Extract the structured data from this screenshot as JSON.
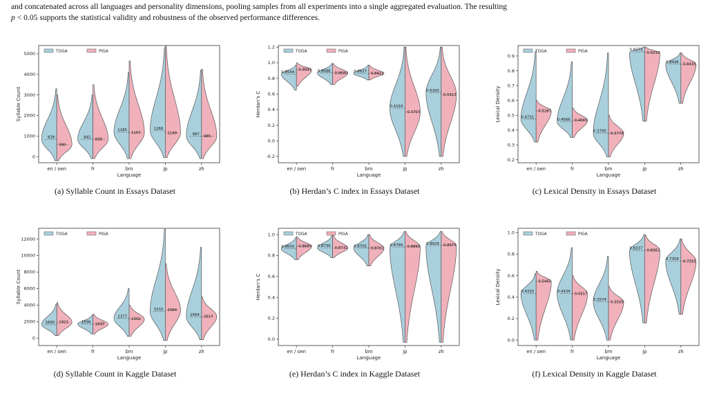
{
  "intro": {
    "line1": "and concatenated across all languages and personality dimensions, pooling samples from all experiments into a single aggregated evaluation. The resulting",
    "line2_var": "p",
    "line2_rest": "< 0.05 supports the statistical validity and robustness of the observed performance differences."
  },
  "colors": {
    "TOGA": "#a9cfdc",
    "PIGA": "#f1b1bb",
    "outline": "#555555"
  },
  "chart_data": [
    {
      "type": "violin",
      "caption": "(a) Syllable Count in Essays Dataset",
      "xlabel": "Language",
      "ylabel": "Syllable Count",
      "categories": [
        "en / oen",
        "fr",
        "bm",
        "jp",
        "zh"
      ],
      "ylim": [
        -300,
        5400
      ],
      "yticks": [
        0,
        1000,
        2000,
        3000,
        4000,
        5000
      ],
      "legend": [
        "TOGA",
        "PIGA"
      ],
      "series": [
        {
          "name": "TOGA",
          "means": [
            839,
            842,
            1185,
            1266,
            997
          ],
          "labels": [
            "839",
            "842",
            "1185",
            "1266",
            "997"
          ],
          "mins": [
            -200,
            -100,
            -100,
            -50,
            -100
          ],
          "maxs": [
            3300,
            3000,
            4100,
            5300,
            4200
          ]
        },
        {
          "name": "PIGA",
          "means": [
            580,
            838,
            1157,
            1149,
            985
          ],
          "labels": [
            "580",
            "838",
            "1157",
            "1149",
            "985"
          ],
          "mins": [
            -200,
            -100,
            -100,
            -50,
            -100
          ],
          "maxs": [
            3000,
            3500,
            4650,
            5400,
            4250
          ]
        }
      ]
    },
    {
      "type": "violin",
      "caption": "(b) Herdan’s C index in Essays Dataset",
      "xlabel": "Language",
      "ylabel": "Herdan’s C",
      "categories": [
        "en / oen",
        "fr",
        "bm",
        "jp",
        "zh"
      ],
      "ylim": [
        -0.28,
        1.22
      ],
      "yticks": [
        -0.2,
        0.0,
        0.2,
        0.4,
        0.6,
        0.8,
        1.0,
        1.2
      ],
      "legend": [
        "TOGA",
        "PIGA"
      ],
      "series": [
        {
          "name": "TOGA",
          "means": [
            0.8544,
            0.8688,
            0.8627,
            0.4164,
            0.616
          ],
          "labels": [
            "0.8544",
            "0.8688",
            "0.8627",
            "0.4164",
            "0.6160"
          ],
          "mins": [
            0.65,
            0.72,
            0.78,
            -0.2,
            -0.2
          ],
          "maxs": [
            0.97,
            0.99,
            0.97,
            1.2,
            1.2
          ]
        },
        {
          "name": "PIGA",
          "means": [
            0.9091,
            0.868,
            0.8622,
            0.3703,
            0.5913
          ],
          "labels": [
            "0.9091",
            "0.8680",
            "0.8622",
            "0.3703",
            "0.5913"
          ],
          "mins": [
            0.7,
            0.72,
            0.78,
            -0.2,
            -0.2
          ],
          "maxs": [
            1.0,
            0.99,
            0.97,
            1.2,
            1.2
          ]
        }
      ]
    },
    {
      "type": "violin",
      "caption": "(c) Lexical Density in Essays Dataset",
      "xlabel": "Language",
      "ylabel": "Lexical Density",
      "categories": [
        "en / oen",
        "fr",
        "bm",
        "jp",
        "zh"
      ],
      "ylim": [
        0.18,
        0.97
      ],
      "yticks": [
        0.2,
        0.3,
        0.4,
        0.5,
        0.6,
        0.7,
        0.8,
        0.9
      ],
      "legend": [
        "TOGA",
        "PIGA"
      ],
      "series": [
        {
          "name": "TOGA",
          "means": [
            0.4731,
            0.4566,
            0.3795,
            0.9273,
            0.8446
          ],
          "labels": [
            "0.4731",
            "0.4566",
            "0.3795",
            "0.9273",
            "0.8446"
          ],
          "mins": [
            0.32,
            0.35,
            0.22,
            0.46,
            0.58
          ],
          "maxs": [
            0.93,
            0.86,
            0.92,
            0.96,
            0.92
          ]
        },
        {
          "name": "PIGA",
          "means": [
            0.5287,
            0.4665,
            0.3778,
            0.9218,
            0.8435
          ],
          "labels": [
            "0.5287",
            "0.4665",
            "0.3778",
            "0.9218",
            "0.8435"
          ],
          "mins": [
            0.32,
            0.35,
            0.22,
            0.46,
            0.58
          ],
          "maxs": [
            0.6,
            0.55,
            0.5,
            0.96,
            0.92
          ]
        }
      ]
    },
    {
      "type": "violin",
      "caption": "(d) Syllable Count in Kaggle Dataset",
      "xlabel": "Language",
      "ylabel": "Syllable Count",
      "categories": [
        "en / oen",
        "fr",
        "bm",
        "jp",
        "zh"
      ],
      "ylim": [
        -900,
        13300
      ],
      "yticks": [
        0,
        2000,
        4000,
        6000,
        8000,
        10000,
        12000
      ],
      "legend": [
        "TOGA",
        "PIGA"
      ],
      "series": [
        {
          "name": "TOGA",
          "means": [
            1660,
            1696,
            2377,
            3232,
            2564
          ],
          "labels": [
            "1660",
            "1696",
            "2377",
            "3232",
            "2564"
          ],
          "mins": [
            300,
            500,
            200,
            -300,
            -200
          ],
          "maxs": [
            4100,
            2800,
            6000,
            13200,
            11000
          ]
        },
        {
          "name": "PIGA",
          "means": [
            1921,
            1697,
            2302,
            3384,
            2617
          ],
          "labels": [
            "1921",
            "1697",
            "2302",
            "3384",
            "2617"
          ],
          "mins": [
            300,
            500,
            200,
            -300,
            -200
          ],
          "maxs": [
            4300,
            2900,
            4000,
            9000,
            5000
          ]
        }
      ]
    },
    {
      "type": "violin",
      "caption": "(e) Herdan’s C index in Kaggle Dataset",
      "xlabel": "Language",
      "ylabel": "Herdan’s C",
      "categories": [
        "en / oen",
        "fr",
        "bm",
        "jp",
        "zh"
      ],
      "ylim": [
        -0.06,
        1.06
      ],
      "yticks": [
        0.0,
        0.2,
        0.4,
        0.6,
        0.8,
        1.0
      ],
      "legend": [
        "TOGA",
        "PIGA"
      ],
      "series": [
        {
          "name": "TOGA",
          "means": [
            0.865,
            0.873,
            0.8705,
            0.8789,
            0.8929
          ],
          "labels": [
            "0.8650",
            "0.8730",
            "0.8705",
            "0.8789",
            "0.8929"
          ],
          "mins": [
            0.76,
            0.78,
            0.7,
            -0.03,
            -0.03
          ],
          "maxs": [
            0.97,
            0.99,
            1.0,
            1.03,
            1.03
          ]
        },
        {
          "name": "PIGA",
          "means": [
            0.8884,
            0.8731,
            0.8701,
            0.8868,
            0.8975
          ],
          "labels": [
            "0.8884",
            "0.8731",
            "0.8701",
            "0.8868",
            "0.8975"
          ],
          "mins": [
            0.76,
            0.78,
            0.7,
            -0.03,
            -0.03
          ],
          "maxs": [
            0.98,
            0.99,
            1.0,
            1.03,
            1.03
          ]
        }
      ]
    },
    {
      "type": "violin",
      "caption": "(f) Lexical Density in Kaggle Dataset",
      "xlabel": "Language",
      "ylabel": "Lexical Density",
      "categories": [
        "en / oen",
        "fr",
        "bm",
        "jp",
        "zh"
      ],
      "ylim": [
        -0.05,
        1.04
      ],
      "yticks": [
        0.0,
        0.2,
        0.4,
        0.6,
        0.8,
        1.0
      ],
      "legend": [
        "TOGA",
        "PIGA"
      ],
      "series": [
        {
          "name": "TOGA",
          "means": [
            0.4332,
            0.4334,
            0.3574,
            0.8337,
            0.7358
          ],
          "labels": [
            "0.4332",
            "0.4334",
            "0.3574",
            "0.8337",
            "0.7358"
          ],
          "mins": [
            0.0,
            0.0,
            0.0,
            0.16,
            0.24
          ],
          "maxs": [
            0.62,
            0.86,
            0.78,
            0.98,
            0.94
          ]
        },
        {
          "name": "PIGA",
          "means": [
            0.546,
            0.4317,
            0.3539,
            0.8362,
            0.7335
          ],
          "labels": [
            "0.5460",
            "0.4317",
            "0.3539",
            "0.8362",
            "0.7335"
          ],
          "mins": [
            0.0,
            0.0,
            0.0,
            0.16,
            0.24
          ],
          "maxs": [
            0.64,
            0.6,
            0.5,
            0.98,
            0.94
          ]
        }
      ]
    }
  ]
}
